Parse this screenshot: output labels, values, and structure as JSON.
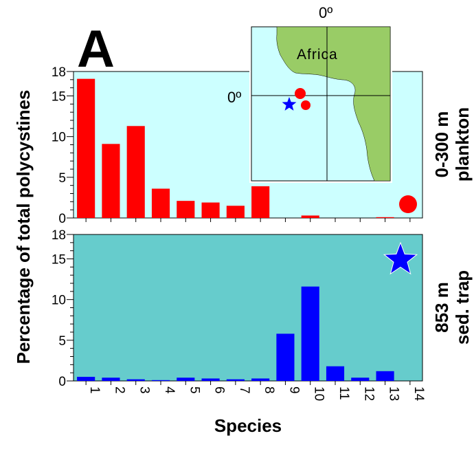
{
  "chart_data": [
    {
      "type": "bar",
      "panel_label": "A",
      "side_label": [
        "0-300 m",
        "plankton"
      ],
      "ylabel": "Percentage of total polycystines",
      "xlabel": "Species",
      "categories": [
        "1",
        "2",
        "3",
        "4",
        "5",
        "6",
        "7",
        "8",
        "9",
        "10",
        "11",
        "12",
        "13",
        "14"
      ],
      "values": [
        17.1,
        9.1,
        11.3,
        3.6,
        2.1,
        1.9,
        1.5,
        3.9,
        0,
        0.3,
        0,
        0,
        0.1,
        0
      ],
      "ylim": [
        0,
        18
      ],
      "yticks": [
        "0",
        "5",
        "10",
        "15",
        "18"
      ],
      "bar_color": "#ff0000",
      "background": "#ccffff",
      "marker": "red-circle"
    },
    {
      "type": "bar",
      "side_label": [
        "853 m",
        "sed. trap"
      ],
      "ylabel": "Percentage of total polycystines",
      "xlabel": "Species",
      "categories": [
        "1",
        "2",
        "3",
        "4",
        "5",
        "6",
        "7",
        "8",
        "9",
        "10",
        "11",
        "12",
        "13",
        "14"
      ],
      "values": [
        0.5,
        0.4,
        0.2,
        0.1,
        0.4,
        0.3,
        0.2,
        0.3,
        5.8,
        11.6,
        1.8,
        0.4,
        1.2,
        0
      ],
      "ylim": [
        0,
        18
      ],
      "yticks": [
        "0",
        "5",
        "10",
        "15",
        "18"
      ],
      "bar_color": "#0000ff",
      "background": "#66cccc",
      "marker": "blue-star"
    }
  ],
  "inset_map": {
    "continent_label": "Africa",
    "lon_label": "0º",
    "lat_label": "0º",
    "land_color": "#99cc66",
    "ocean_color": "#ccffff"
  },
  "colors": {
    "plankton": "#ff0000",
    "trap": "#0000ff"
  }
}
